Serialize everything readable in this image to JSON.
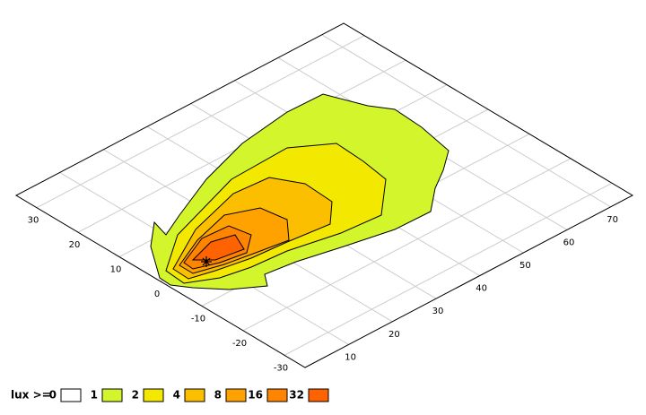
{
  "chart_data": {
    "type": "contour",
    "legend_title": "lux >=",
    "levels": [
      0,
      1,
      2,
      4,
      8,
      16,
      32
    ],
    "colors": [
      "#ffffff",
      "#d2f52c",
      "#f2e800",
      "#fcbf00",
      "#ffa200",
      "#ff8400",
      "#ff6200"
    ],
    "xlim": [
      0,
      75
    ],
    "ylim": [
      -35,
      35
    ],
    "xticks": [
      10,
      20,
      30,
      40,
      50,
      60,
      70
    ],
    "yticks": [
      -30,
      -20,
      -10,
      0,
      10,
      20,
      30
    ],
    "grid": true
  }
}
